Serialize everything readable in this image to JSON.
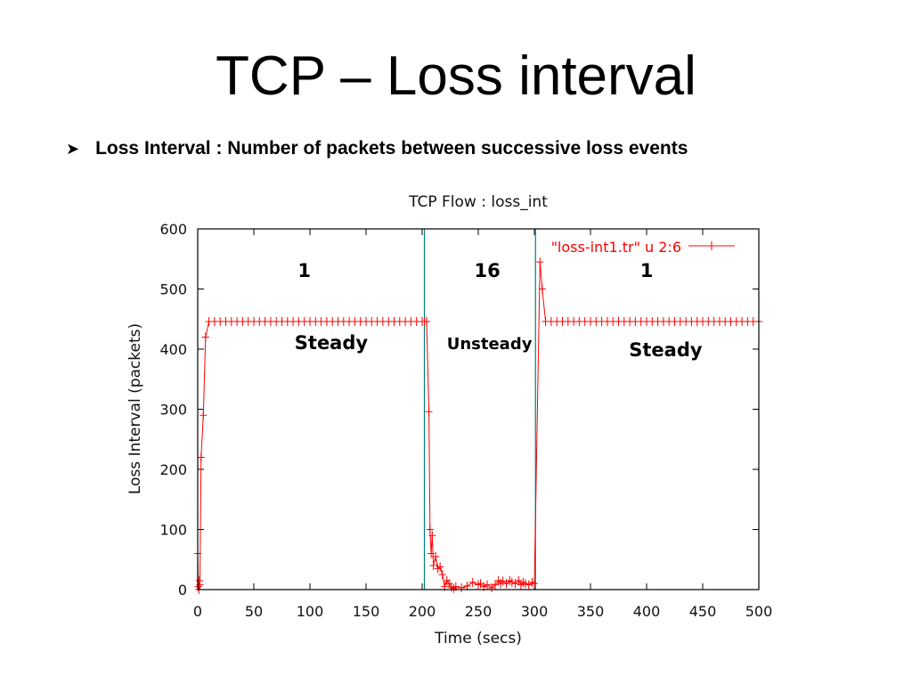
{
  "slide": {
    "title": "TCP – Loss interval",
    "bullet": "Loss Interval : Number of packets between successive loss events"
  },
  "chart_data": {
    "type": "line",
    "title": "TCP Flow : loss_int",
    "xlabel": "Time (secs)",
    "ylabel": "Loss Interval (packets)",
    "xlim": [
      0,
      500
    ],
    "ylim": [
      0,
      600
    ],
    "xticks": [
      0,
      50,
      100,
      150,
      200,
      250,
      300,
      350,
      400,
      450,
      500
    ],
    "yticks": [
      0,
      100,
      200,
      300,
      400,
      500,
      600
    ],
    "grid": false,
    "legend_position": "top-right",
    "series": [
      {
        "name": "\"loss-int1.tr\" u 2:6",
        "color": "#ff0000",
        "marker": "plus",
        "x": [
          0,
          0.5,
          1,
          1.5,
          2,
          3,
          5,
          7,
          10,
          15,
          20,
          25,
          30,
          35,
          40,
          45,
          50,
          55,
          60,
          65,
          70,
          75,
          80,
          85,
          90,
          95,
          100,
          105,
          110,
          115,
          120,
          125,
          130,
          135,
          140,
          145,
          150,
          155,
          160,
          165,
          170,
          175,
          180,
          185,
          190,
          195,
          200,
          202,
          204,
          206,
          207,
          208,
          209,
          210,
          212,
          214,
          216,
          218,
          220,
          222,
          224,
          226,
          228,
          230,
          235,
          240,
          245,
          250,
          252,
          255,
          258,
          262,
          265,
          268,
          270,
          272,
          275,
          278,
          280,
          283,
          286,
          288,
          290,
          292,
          295,
          298,
          300,
          305,
          307,
          310,
          315,
          320,
          325,
          330,
          335,
          340,
          345,
          350,
          355,
          360,
          365,
          370,
          375,
          380,
          385,
          390,
          395,
          400,
          405,
          410,
          415,
          420,
          425,
          430,
          435,
          440,
          445,
          450,
          455,
          460,
          465,
          470,
          475,
          480,
          485,
          490,
          495,
          500
        ],
        "y": [
          60,
          5,
          0,
          15,
          8,
          220,
          290,
          420,
          446,
          446,
          446,
          446,
          446,
          446,
          446,
          446,
          446,
          446,
          446,
          446,
          446,
          446,
          446,
          446,
          446,
          446,
          446,
          446,
          446,
          446,
          446,
          446,
          446,
          446,
          446,
          446,
          446,
          446,
          446,
          446,
          446,
          446,
          446,
          446,
          446,
          446,
          446,
          446,
          446,
          296,
          100,
          60,
          90,
          40,
          55,
          35,
          38,
          25,
          5,
          15,
          10,
          4,
          2,
          5,
          3,
          6,
          12,
          8,
          10,
          5,
          8,
          3,
          8,
          15,
          10,
          14,
          10,
          15,
          12,
          10,
          15,
          8,
          12,
          10,
          8,
          12,
          10,
          545,
          500,
          446,
          446,
          446,
          446,
          446,
          446,
          446,
          446,
          446,
          446,
          446,
          446,
          446,
          446,
          446,
          446,
          446,
          446,
          446,
          446,
          446,
          446,
          446,
          446,
          446,
          446,
          446,
          446,
          446,
          446,
          446,
          446,
          446,
          446,
          446,
          446,
          446,
          446,
          446
        ]
      }
    ],
    "vlines": [
      {
        "x": 202,
        "color": "#008080"
      },
      {
        "x": 301,
        "color": "#008080"
      }
    ],
    "annotations": [
      {
        "text": "1",
        "x": 95,
        "y": 520
      },
      {
        "text": "16",
        "x": 258,
        "y": 520
      },
      {
        "text": "1",
        "x": 400,
        "y": 520
      },
      {
        "text": "Steady",
        "x": 119,
        "y": 400
      },
      {
        "text": "Unsteady",
        "x": 260,
        "y": 400
      },
      {
        "text": "Steady",
        "x": 417,
        "y": 388
      }
    ]
  }
}
